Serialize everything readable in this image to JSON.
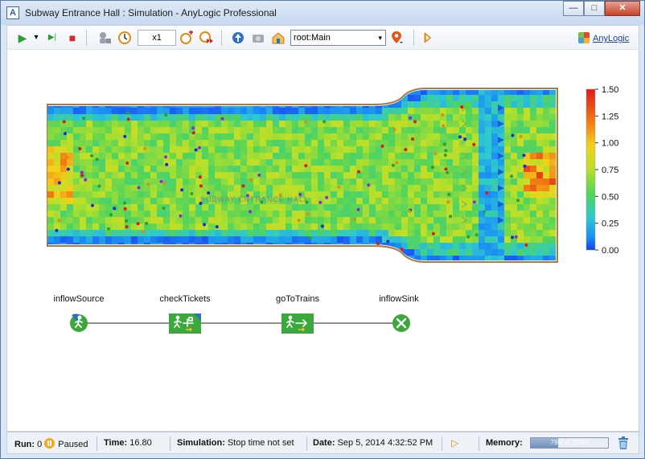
{
  "window": {
    "title": "Subway Entrance Hall : Simulation - AnyLogic Professional",
    "app_icon": "A",
    "minimize_glyph": "—",
    "maximize_glyph": "□",
    "close_glyph": "✕"
  },
  "toolbar": {
    "run_glyph": "▶",
    "dropdown_glyph": "▾",
    "step_glyph": "▶|",
    "stop_glyph": "■",
    "speed": "x1",
    "model_root": "root:Main",
    "brand_link": "AnyLogic"
  },
  "heatmap": {
    "hall_label": "SUBWAY ENTRANCE HALL",
    "scale_labels": [
      "1.50",
      "1.25",
      "1.00",
      "0.75",
      "0.50",
      "0.25",
      "0.00"
    ]
  },
  "flowchart": {
    "blocks": [
      {
        "label": "inflowSource",
        "icon": "pedestrian-source-icon"
      },
      {
        "label": "checkTickets",
        "icon": "service-gate-icon"
      },
      {
        "label": "goToTrains",
        "icon": "pedestrian-goto-icon"
      },
      {
        "label": "inflowSink",
        "icon": "sink-x-icon"
      }
    ]
  },
  "status": {
    "run_label": "Run:",
    "run_value": "0",
    "run_state": "Paused",
    "time_label": "Time:",
    "time_value": "16.80",
    "simulation_label": "Simulation:",
    "simulation_value": "Stop time not set",
    "date_label": "Date:",
    "date_value": "Sep 5, 2014 4:32:52 PM",
    "memory_label": "Memory:",
    "memory_value": "79M of 228M",
    "memory_fraction": 0.35
  },
  "colors": {
    "accent": "#2a5ea0",
    "heat_high": "#e01a1a",
    "heat_mid": "#52d45a",
    "heat_low": "#1a3df0",
    "flow_block": "#3aa83a"
  }
}
